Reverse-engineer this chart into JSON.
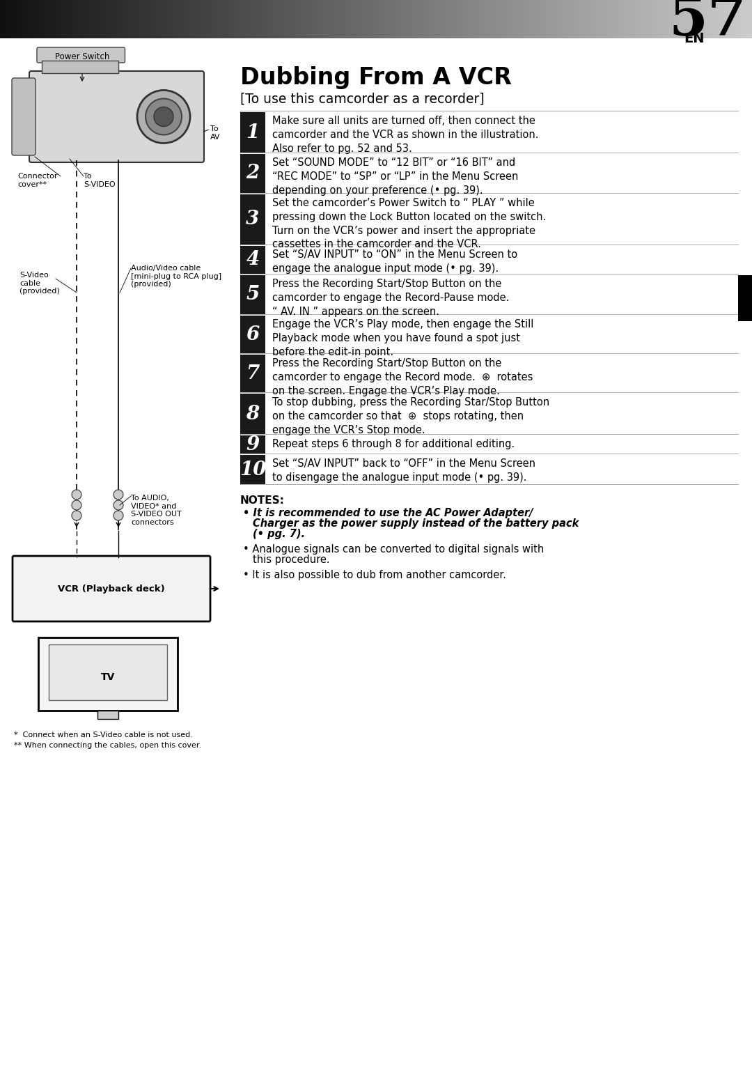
{
  "page_bg": "#ffffff",
  "page_num": "57",
  "page_num_prefix": "EN",
  "title": "Dubbing From A VCR",
  "subtitle": "[To use this camcorder as a recorder]",
  "steps": [
    {
      "num": "1",
      "text": "Make sure all units are turned off, then connect the\ncamcorder and the VCR as shown in the illustration.\nAlso refer to pg. 52 and 53."
    },
    {
      "num": "2",
      "text": "Set “SOUND MODE” to “12 BIT” or “16 BIT” and\n“REC MODE” to “SP” or “LP” in the Menu Screen\ndepending on your preference (• pg. 39)."
    },
    {
      "num": "3",
      "text": "Set the camcorder’s Power Switch to “ PLAY ” while\npressing down the Lock Button located on the switch.\nTurn on the VCR’s power and insert the appropriate\ncassettes in the camcorder and the VCR."
    },
    {
      "num": "4",
      "text": "Set “S/AV INPUT” to “ON” in the Menu Screen to\nengage the analogue input mode (• pg. 39)."
    },
    {
      "num": "5",
      "text": "Press the Recording Start/Stop Button on the\ncamcorder to engage the Record-Pause mode.\n“ AV. IN ” appears on the screen."
    },
    {
      "num": "6",
      "text": "Engage the VCR’s Play mode, then engage the Still\nPlayback mode when you have found a spot just\nbefore the edit-in point."
    },
    {
      "num": "7",
      "text": "Press the Recording Start/Stop Button on the\ncamcorder to engage the Record mode.  ⊕  rotates\non the screen. Engage the VCR’s Play mode."
    },
    {
      "num": "8",
      "text": "To stop dubbing, press the Recording Star/Stop Button\non the camcorder so that  ⊕  stops rotating, then\nengage the VCR’s Stop mode."
    },
    {
      "num": "9",
      "text": "Repeat steps 6 through 8 for additional editing."
    },
    {
      "num": "10",
      "text": "Set “S/AV INPUT” back to “OFF” in the Menu Screen\nto disengage the analogue input mode (• pg. 39)."
    }
  ],
  "notes_title": "NOTES:",
  "notes": [
    {
      "text": "It is recommended to use the AC Power Adapter/\nCharger as the power supply instead of the battery pack\n(• pg. 7).",
      "bold_italic": true
    },
    {
      "text": "Analogue signals can be converted to digital signals with\nthis procedure.",
      "bold_italic": false
    },
    {
      "text": "It is also possible to dub from another camcorder.",
      "bold_italic": false
    }
  ],
  "diagram_labels": {
    "power_switch": "Power Switch",
    "to_av": "To\nAV",
    "connector_cover": "Connector\ncover**",
    "to_svideo": "To\nS-VIDEO",
    "svideo_cable": "S-Video\ncable\n(provided)",
    "audio_video_cable": "Audio/Video cable\n[mini-plug to RCA plug]\n(provided)",
    "to_audio": "To AUDIO,\nVIDEO* and\nS-VIDEO OUT\nconnectors",
    "vcr_label": "VCR (Playback deck)",
    "tv_label": "TV"
  },
  "footnotes": [
    "*  Connect when an S-Video cable is not used.",
    "** When connecting the cables, open this cover."
  ],
  "step_num_bg": "#1a1a1a",
  "divider_color": "#aaaaaa",
  "step_heights": [
    58,
    56,
    72,
    40,
    56,
    54,
    54,
    58,
    26,
    42
  ]
}
